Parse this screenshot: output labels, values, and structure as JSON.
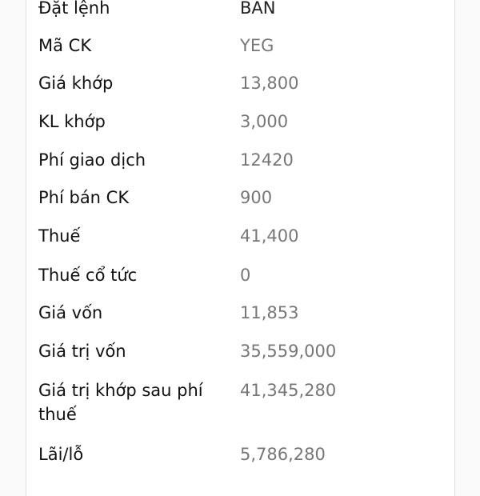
{
  "rows": [
    {
      "label": "Đặt lệnh",
      "value": "BÁN"
    },
    {
      "label": "Mã CK",
      "value": "YEG"
    },
    {
      "label": "Giá khớp",
      "value": "13,800"
    },
    {
      "label": "KL khớp",
      "value": "3,000"
    },
    {
      "label": "Phí giao dịch",
      "value": "12420"
    },
    {
      "label": "Phí bán CK",
      "value": "900"
    },
    {
      "label": "Thuế",
      "value": "41,400"
    },
    {
      "label": "Thuế cổ tức",
      "value": "0"
    },
    {
      "label": "Giá vốn",
      "value": "11,853"
    },
    {
      "label": "Giá trị vốn",
      "value": "35,559,000"
    },
    {
      "label": "Giá trị khớp sau phí thuế",
      "value": "41,345,280"
    },
    {
      "label": "Lãi/lỗ",
      "value": "5,786,280"
    }
  ]
}
